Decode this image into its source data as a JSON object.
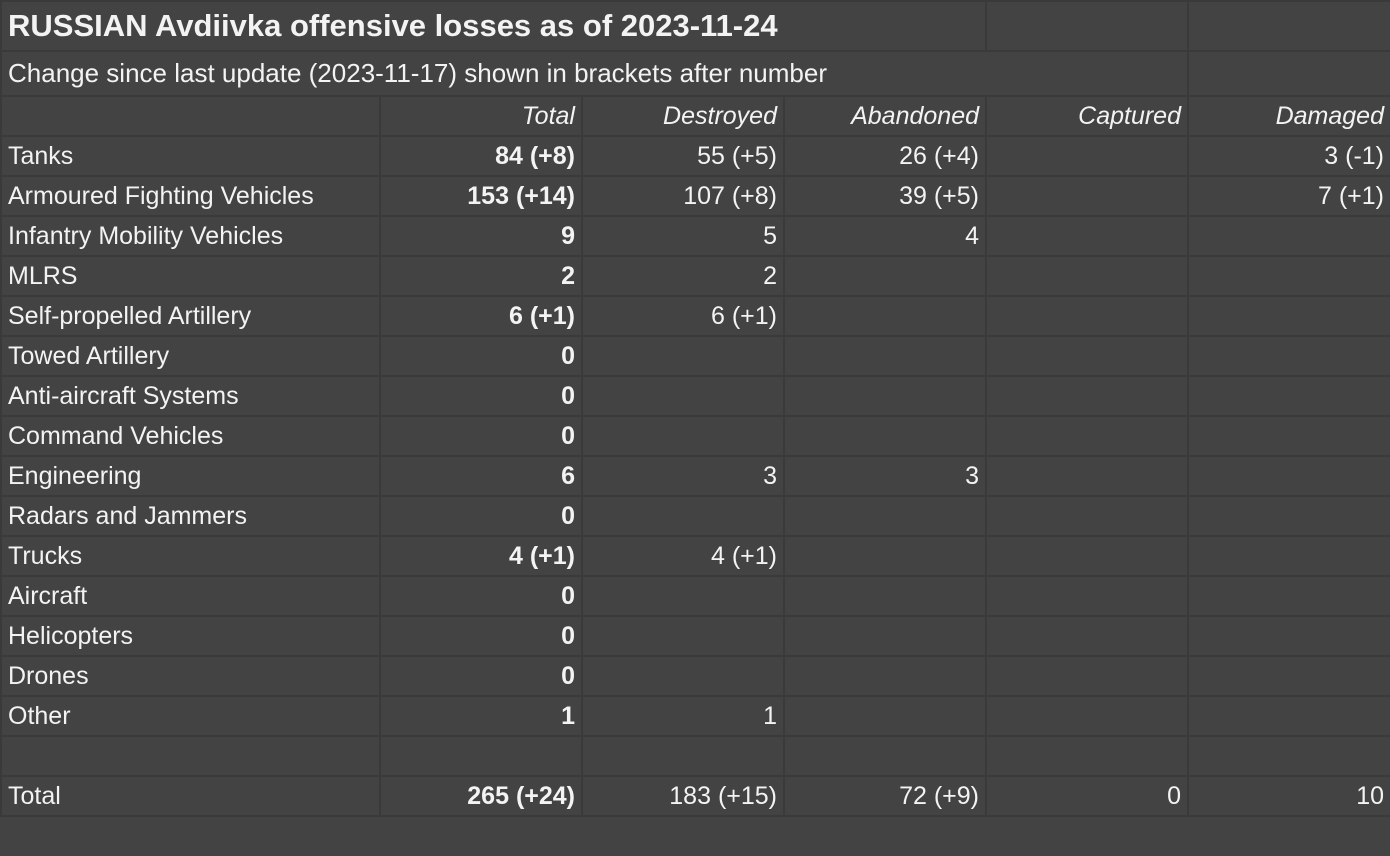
{
  "title": "RUSSIAN Avdiivka offensive losses as of 2023-11-24",
  "subtitle": "Change since last update (2023-11-17) shown in brackets after number",
  "columns": [
    "",
    "Total",
    "Destroyed",
    "Abandoned",
    "Captured",
    "Damaged"
  ],
  "rows": [
    [
      "Tanks",
      "84 (+8)",
      "55 (+5)",
      "26 (+4)",
      "",
      "3 (-1)"
    ],
    [
      "Armoured Fighting Vehicles",
      "153 (+14)",
      "107 (+8)",
      "39 (+5)",
      "",
      "7 (+1)"
    ],
    [
      "Infantry Mobility Vehicles",
      "9",
      "5",
      "4",
      "",
      ""
    ],
    [
      "MLRS",
      "2",
      "2",
      "",
      "",
      ""
    ],
    [
      "Self-propelled Artillery",
      "6 (+1)",
      "6 (+1)",
      "",
      "",
      ""
    ],
    [
      "Towed Artillery",
      "0",
      "",
      "",
      "",
      ""
    ],
    [
      "Anti-aircraft Systems",
      "0",
      "",
      "",
      "",
      ""
    ],
    [
      "Command Vehicles",
      "0",
      "",
      "",
      "",
      ""
    ],
    [
      "Engineering",
      "6",
      "3",
      "3",
      "",
      ""
    ],
    [
      "Radars and Jammers",
      "0",
      "",
      "",
      "",
      ""
    ],
    [
      "Trucks",
      "4 (+1)",
      "4 (+1)",
      "",
      "",
      ""
    ],
    [
      "Aircraft",
      "0",
      "",
      "",
      "",
      ""
    ],
    [
      "Helicopters",
      "0",
      "",
      "",
      "",
      ""
    ],
    [
      "Drones",
      "0",
      "",
      "",
      "",
      ""
    ],
    [
      "Other",
      "1",
      "1",
      "",
      "",
      ""
    ],
    [
      "",
      "",
      "",
      "",
      "",
      ""
    ],
    [
      "Total",
      "265 (+24)",
      "183 (+15)",
      "72 (+9)",
      "0",
      "10"
    ]
  ],
  "colors": {
    "background": "#434343",
    "grid": "#3a3a3a",
    "text": "#f3f3f3"
  }
}
